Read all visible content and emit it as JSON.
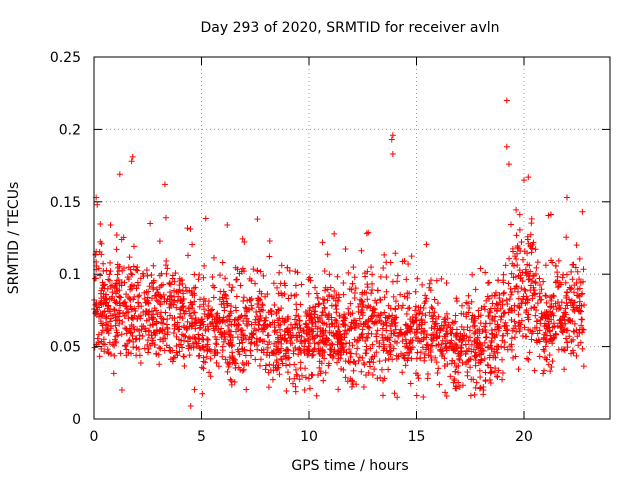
{
  "chart_data": {
    "type": "scatter",
    "title": "Day 293 of 2020, SRMTID for receiver avln",
    "xlabel": "GPS time / hours",
    "ylabel": "SRMTID / TECUs",
    "xlim": [
      0,
      24
    ],
    "ylim": [
      0,
      0.25
    ],
    "xticks": [
      0,
      5,
      10,
      15,
      20
    ],
    "xtick_labels": [
      "0",
      "5",
      "10",
      "15",
      "20"
    ],
    "yticks": [
      0,
      0.05,
      0.1,
      0.15,
      0.2,
      0.25
    ],
    "ytick_labels": [
      "0",
      "0.05",
      "0.1",
      "0.15",
      "0.2",
      "0.25"
    ],
    "grid": true,
    "marker": "+",
    "series_color": "#ff0000",
    "data_x_range": [
      0,
      22.8
    ],
    "profile_x": [
      0,
      0.5,
      1,
      1.5,
      2,
      2.5,
      3,
      3.5,
      4,
      4.5,
      5,
      5.5,
      6,
      6.5,
      7,
      7.5,
      8,
      8.5,
      9,
      9.5,
      10,
      10.5,
      11,
      11.5,
      12,
      12.5,
      13,
      13.5,
      14,
      14.5,
      15,
      15.5,
      16,
      16.5,
      17,
      17.5,
      18,
      18.5,
      19,
      19.5,
      20,
      20.5,
      21,
      21.5,
      22,
      22.5,
      22.8
    ],
    "profile_y": [
      0.085,
      0.075,
      0.075,
      0.078,
      0.075,
      0.07,
      0.07,
      0.075,
      0.07,
      0.065,
      0.06,
      0.065,
      0.07,
      0.06,
      0.06,
      0.065,
      0.062,
      0.06,
      0.058,
      0.055,
      0.057,
      0.06,
      0.06,
      0.06,
      0.058,
      0.065,
      0.065,
      0.06,
      0.07,
      0.06,
      0.062,
      0.058,
      0.055,
      0.052,
      0.052,
      0.05,
      0.05,
      0.055,
      0.06,
      0.085,
      0.1,
      0.085,
      0.06,
      0.07,
      0.075,
      0.075,
      0.08
    ],
    "notable_points": [
      {
        "x": 19.2,
        "y": 0.22
      },
      {
        "x": 13.9,
        "y": 0.196
      },
      {
        "x": 13.85,
        "y": 0.193
      },
      {
        "x": 13.9,
        "y": 0.183
      },
      {
        "x": 1.8,
        "y": 0.181
      },
      {
        "x": 1.75,
        "y": 0.178
      },
      {
        "x": 1.2,
        "y": 0.169
      },
      {
        "x": 3.3,
        "y": 0.162
      },
      {
        "x": 20.0,
        "y": 0.165
      },
      {
        "x": 20.2,
        "y": 0.167
      },
      {
        "x": 19.3,
        "y": 0.176
      },
      {
        "x": 19.2,
        "y": 0.188
      },
      {
        "x": 0.1,
        "y": 0.153
      },
      {
        "x": 0.15,
        "y": 0.148
      },
      {
        "x": 22.0,
        "y": 0.153
      },
      {
        "x": 7.6,
        "y": 0.138
      },
      {
        "x": 6.2,
        "y": 0.134
      },
      {
        "x": 4.5,
        "y": 0.009
      },
      {
        "x": 14.1,
        "y": 0.015
      },
      {
        "x": 1.3,
        "y": 0.02
      },
      {
        "x": 18.1,
        "y": 0.017
      },
      {
        "x": 9.8,
        "y": 0.02
      }
    ]
  }
}
